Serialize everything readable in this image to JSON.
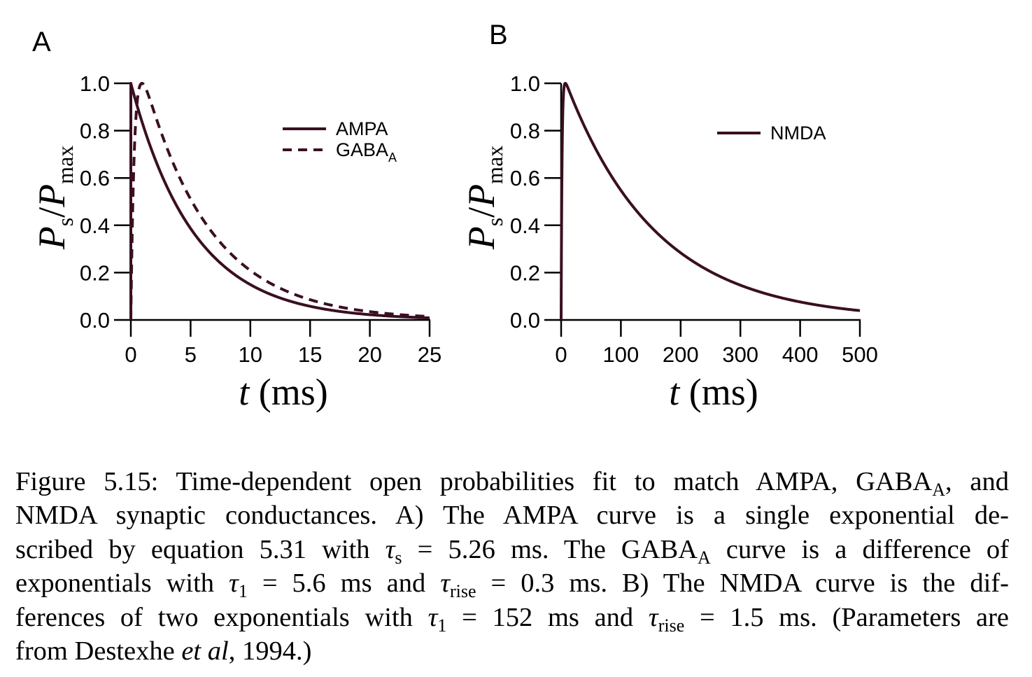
{
  "chart_data": [
    {
      "panel_label": "A",
      "type": "line",
      "title": "",
      "xlabel": {
        "var": "t",
        "unit": "(ms)"
      },
      "ylabel": {
        "var": "P",
        "sub": "s",
        "sep": "/",
        "var2": "P",
        "sub2": "max"
      },
      "xlim": [
        0,
        25
      ],
      "ylim": [
        0,
        1
      ],
      "x_ticks": [
        0,
        5,
        10,
        15,
        20,
        25
      ],
      "x_tick_labels": [
        "0",
        "5",
        "10",
        "15",
        "20",
        "25"
      ],
      "y_ticks": [
        0,
        0.2,
        0.4,
        0.6,
        0.8,
        1.0
      ],
      "y_tick_labels": [
        "0.0",
        "0.2",
        "0.4",
        "0.6",
        "0.8",
        "1.0"
      ],
      "legend_position": "top-right",
      "series": [
        {
          "name": "AMPA",
          "style": "solid",
          "model": "single_exponential",
          "tau_s": 5.26,
          "x": [
            0,
            2.5,
            5,
            7.5,
            10,
            12.5,
            15,
            17.5,
            20,
            22.5,
            25
          ],
          "y": [
            1.0,
            0.62,
            0.39,
            0.24,
            0.15,
            0.093,
            0.058,
            0.036,
            0.022,
            0.014,
            0.009
          ]
        },
        {
          "name": "GABA",
          "name_sub": "A",
          "style": "dashed",
          "model": "difference_of_exponentials",
          "tau_1": 5.6,
          "tau_rise": 0.3,
          "x": [
            0,
            0.3,
            1,
            2.5,
            5,
            7.5,
            10,
            12.5,
            15,
            17.5,
            20,
            22.5,
            25
          ],
          "y": [
            0.0,
            0.66,
            1.0,
            0.81,
            0.52,
            0.33,
            0.21,
            0.13,
            0.083,
            0.053,
            0.034,
            0.021,
            0.014
          ]
        }
      ]
    },
    {
      "panel_label": "B",
      "type": "line",
      "title": "",
      "xlabel": {
        "var": "t",
        "unit": "(ms)"
      },
      "ylabel": {
        "var": "P",
        "sub": "s",
        "sep": "/",
        "var2": "P",
        "sub2": "max"
      },
      "xlim": [
        0,
        500
      ],
      "ylim": [
        0,
        1
      ],
      "x_ticks": [
        0,
        100,
        200,
        300,
        400,
        500
      ],
      "x_tick_labels": [
        "0",
        "100",
        "200",
        "300",
        "400",
        "500"
      ],
      "y_ticks": [
        0,
        0.2,
        0.4,
        0.6,
        0.8,
        1.0
      ],
      "y_tick_labels": [
        "0.0",
        "0.2",
        "0.4",
        "0.6",
        "0.8",
        "1.0"
      ],
      "legend_position": "top-right",
      "series": [
        {
          "name": "NMDA",
          "style": "solid",
          "model": "difference_of_exponentials",
          "tau_1": 152,
          "tau_rise": 1.5,
          "x": [
            0,
            5,
            8,
            50,
            100,
            150,
            200,
            250,
            300,
            350,
            400,
            450,
            500
          ],
          "y": [
            0.0,
            0.96,
            1.0,
            0.75,
            0.54,
            0.39,
            0.28,
            0.2,
            0.14,
            0.1,
            0.074,
            0.053,
            0.038
          ]
        }
      ]
    }
  ],
  "colors": {
    "curve": "#3a0f22",
    "axis": "#000000"
  },
  "caption": {
    "lines": [
      [
        "Figure 5.15: Time-dependent open probabilities fit to match AMPA, GABA",
        {
          "sub": "A"
        },
        ", and"
      ],
      [
        "NMDA synaptic conductances.  A) The AMPA curve is a single exponential de-"
      ],
      [
        "scribed by equation 5.31 with ",
        {
          "sym": "τ"
        },
        {
          "sub": "s"
        },
        " = 5.26 ms.  The GABA",
        {
          "sub": "A"
        },
        " curve is a difference of"
      ],
      [
        "exponentials with ",
        {
          "sym": "τ"
        },
        {
          "sub": "1"
        },
        " = 5.6 ms and ",
        {
          "sym": "τ"
        },
        {
          "sub": "rise"
        },
        " = 0.3 ms.  B) The NMDA curve is the dif-"
      ],
      [
        "ferences of two exponentials with ",
        {
          "sym": "τ"
        },
        {
          "sub": "1"
        },
        " = 152 ms and ",
        {
          "sym": "τ"
        },
        {
          "sub": "rise"
        },
        " = 1.5 ms.  (Parameters are"
      ],
      [
        "from Destexhe ",
        {
          "i": "et al"
        },
        ", 1994.)"
      ]
    ]
  }
}
